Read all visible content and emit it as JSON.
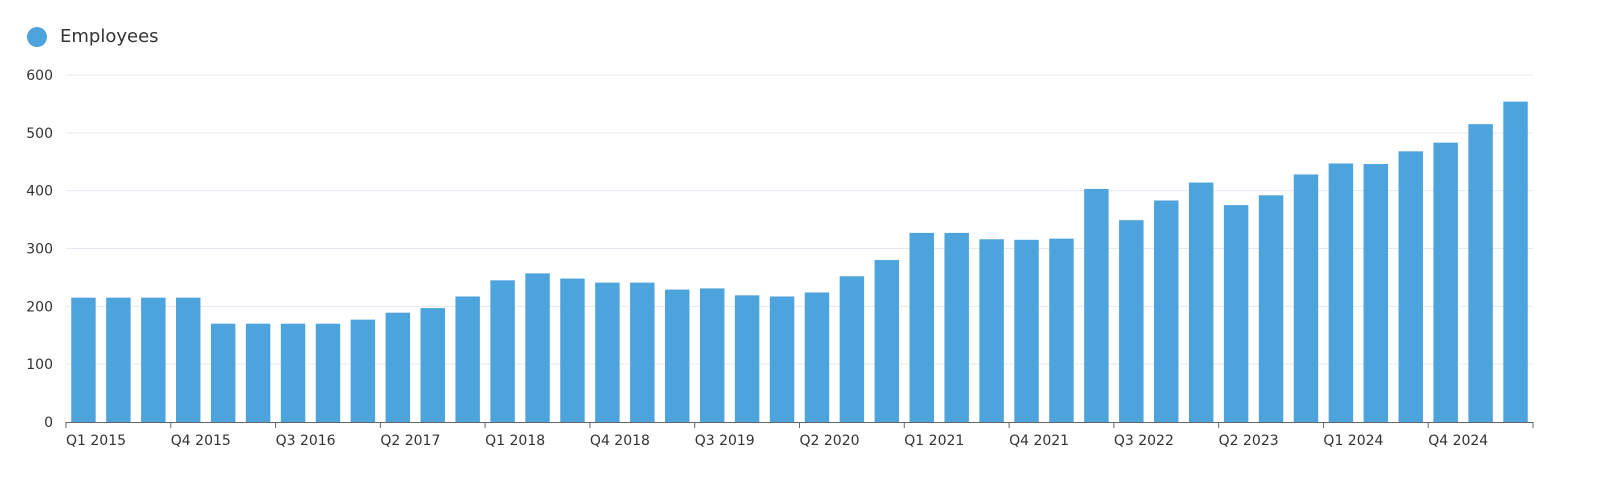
{
  "chart_data": {
    "type": "bar",
    "ylim": [
      0,
      600
    ],
    "yticks": [
      0,
      100,
      200,
      300,
      400,
      500,
      600
    ],
    "grid": true,
    "legend_position": "top-left",
    "series": [
      {
        "name": "Employees",
        "color": "#4da3dc",
        "values": [
          215,
          215,
          215,
          215,
          170,
          170,
          170,
          170,
          177,
          189,
          197,
          217,
          245,
          257,
          248,
          241,
          241,
          229,
          231,
          219,
          217,
          224,
          252,
          280,
          327,
          327,
          316,
          315,
          317,
          403,
          349,
          383,
          414,
          375,
          392,
          428,
          447,
          446,
          468,
          483,
          515,
          554
        ]
      }
    ],
    "categories": [
      "Q1 2015",
      "Q2 2015",
      "Q3 2015",
      "Q4 2015",
      "Q1 2016",
      "Q2 2016",
      "Q3 2016",
      "Q4 2016",
      "Q1 2017",
      "Q2 2017",
      "Q3 2017",
      "Q4 2017",
      "Q1 2018",
      "Q2 2018",
      "Q3 2018",
      "Q4 2018",
      "Q1 2019",
      "Q2 2019",
      "Q3 2019",
      "Q4 2019",
      "Q1 2020",
      "Q2 2020",
      "Q3 2020",
      "Q4 2020",
      "Q1 2021",
      "Q2 2021",
      "Q3 2021",
      "Q4 2021",
      "Q1 2022",
      "Q2 2022",
      "Q3 2022",
      "Q4 2022",
      "Q1 2023",
      "Q2 2023",
      "Q3 2023",
      "Q4 2023",
      "Q1 2024",
      "Q2 2024",
      "Q3 2024",
      "Q4 2024",
      "Q1 2025",
      "Q2 2025"
    ],
    "xtick_labels": [
      "Q1 2015",
      "Q4 2015",
      "Q3 2016",
      "Q2 2017",
      "Q1 2018",
      "Q4 2018",
      "Q3 2019",
      "Q2 2020",
      "Q1 2021",
      "Q4 2021",
      "Q3 2022",
      "Q2 2023",
      "Q1 2024",
      "Q4 2024"
    ]
  }
}
